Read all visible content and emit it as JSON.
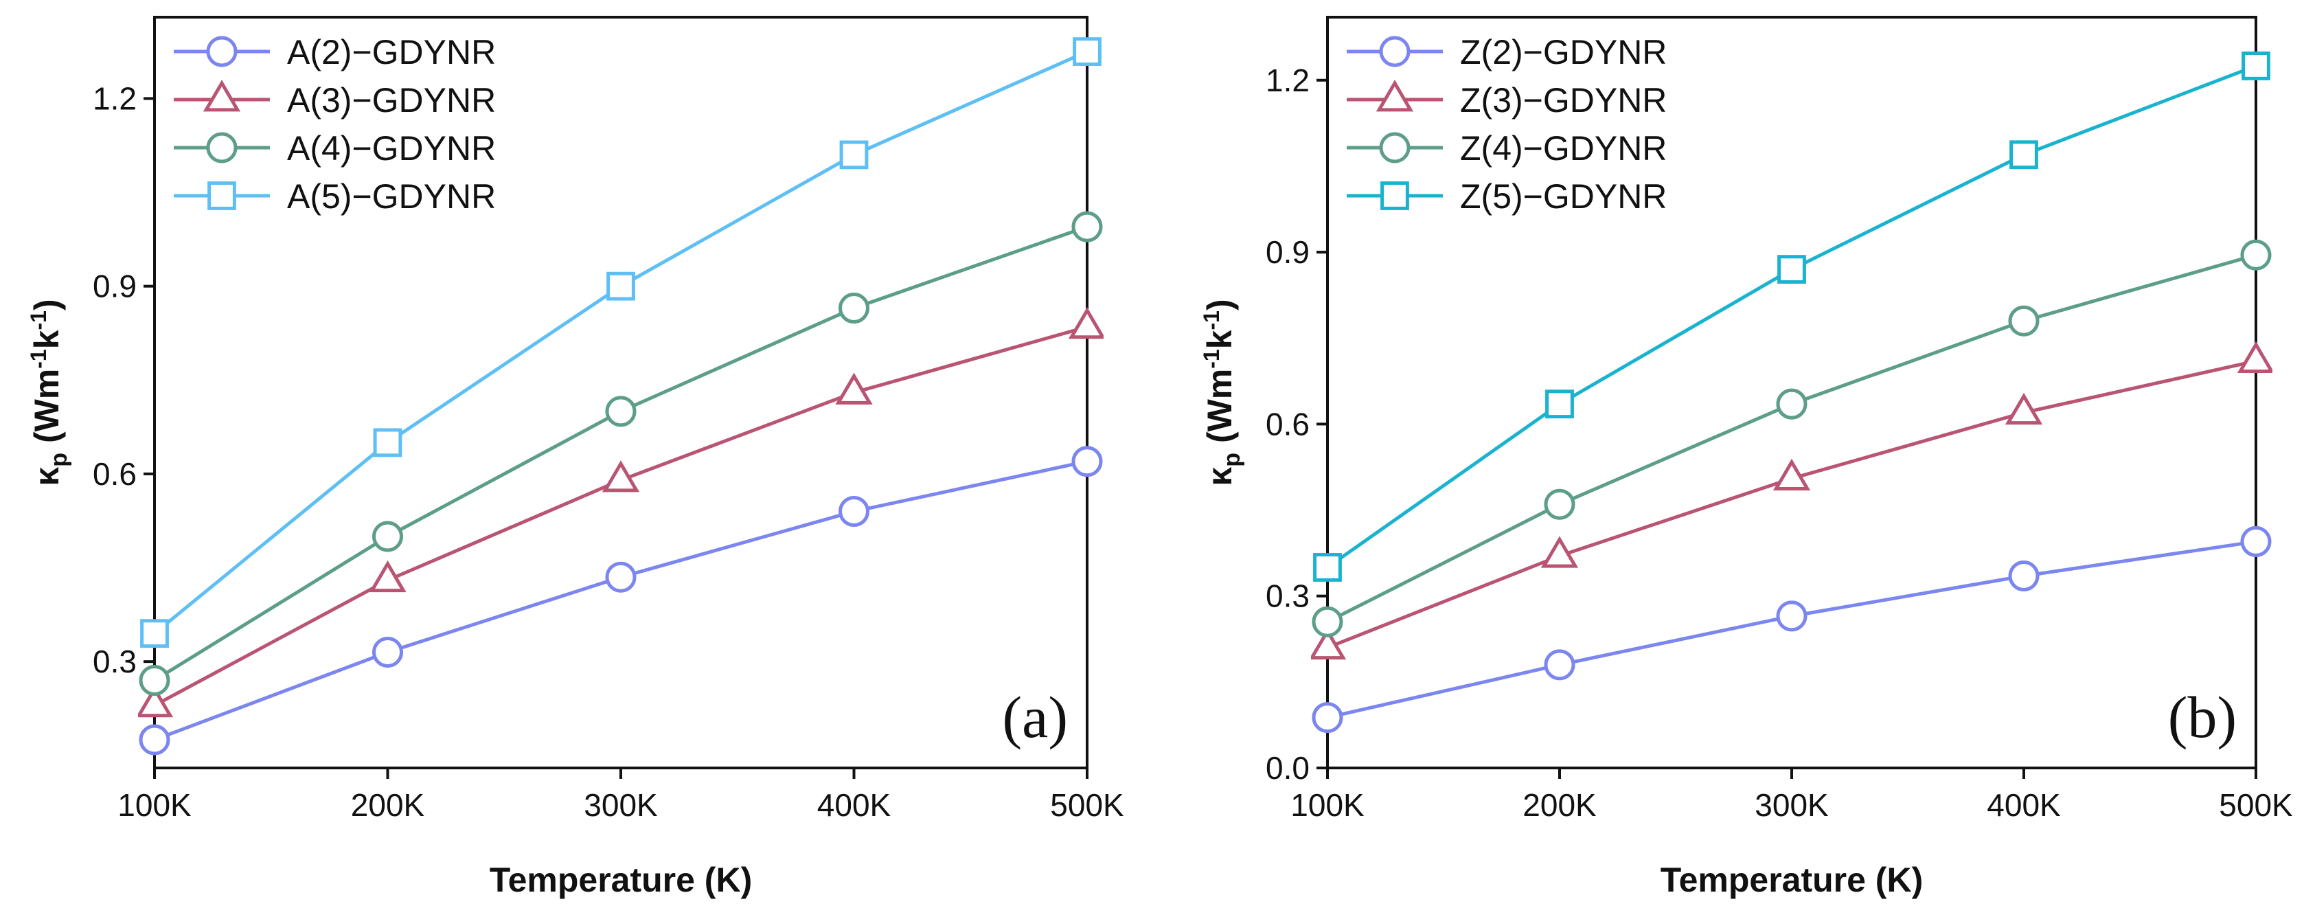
{
  "chart_data": [
    {
      "type": "line",
      "panel_label": "(a)",
      "x": [
        100,
        200,
        300,
        400,
        500
      ],
      "x_tick_labels": [
        "100K",
        "200K",
        "300K",
        "400K",
        "500K"
      ],
      "xlim": [
        100,
        500
      ],
      "xlabel": "Temperature (K)",
      "ylabel_main": "κ",
      "ylabel_sub": "p",
      "ylabel_unit": " (Wm",
      "ylabel_exp1": "-1",
      "ylabel_mid": "k",
      "ylabel_exp2": "-1",
      "ylabel_close": ")",
      "ylim": [
        0.13,
        1.33
      ],
      "y_ticks": [
        0.3,
        0.6,
        0.9,
        1.2
      ],
      "y_tick_labels": [
        "0.3",
        "0.6",
        "0.9",
        "1.2"
      ],
      "legend_position": "top-left",
      "series": [
        {
          "name": "A(2)−GDYNR",
          "marker": "circle",
          "color": "#7b86f0",
          "values": [
            0.175,
            0.315,
            0.435,
            0.54,
            0.62
          ]
        },
        {
          "name": "A(3)−GDYNR",
          "marker": "triangle",
          "color": "#b95573",
          "values": [
            0.23,
            0.43,
            0.59,
            0.73,
            0.835
          ]
        },
        {
          "name": "A(4)−GDYNR",
          "marker": "circle",
          "color": "#5c9e86",
          "values": [
            0.27,
            0.5,
            0.7,
            0.865,
            0.995
          ]
        },
        {
          "name": "A(5)−GDYNR",
          "marker": "square",
          "color": "#5ebff5",
          "values": [
            0.345,
            0.65,
            0.9,
            1.11,
            1.275
          ]
        }
      ]
    },
    {
      "type": "line",
      "panel_label": "(b)",
      "x": [
        100,
        200,
        300,
        400,
        500
      ],
      "x_tick_labels": [
        "100K",
        "200K",
        "300K",
        "400K",
        "500K"
      ],
      "xlim": [
        100,
        500
      ],
      "xlabel": "Temperature (K)",
      "ylabel_main": "κ",
      "ylabel_sub": "p",
      "ylabel_unit": " (Wm",
      "ylabel_exp1": "-1",
      "ylabel_mid": "k",
      "ylabel_exp2": "-1",
      "ylabel_close": ")",
      "ylim": [
        0.0,
        1.31
      ],
      "y_ticks": [
        0.0,
        0.3,
        0.6,
        0.9,
        1.2
      ],
      "y_tick_labels": [
        "0.0",
        "0.3",
        "0.6",
        "0.9",
        "1.2"
      ],
      "legend_position": "top-left",
      "series": [
        {
          "name": "Z(2)−GDYNR",
          "marker": "circle",
          "color": "#7b86f0",
          "values": [
            0.088,
            0.18,
            0.265,
            0.335,
            0.395
          ]
        },
        {
          "name": "Z(3)−GDYNR",
          "marker": "triangle",
          "color": "#b95573",
          "values": [
            0.21,
            0.37,
            0.505,
            0.62,
            0.71
          ]
        },
        {
          "name": "Z(4)−GDYNR",
          "marker": "circle",
          "color": "#5c9e86",
          "values": [
            0.255,
            0.46,
            0.635,
            0.78,
            0.895
          ]
        },
        {
          "name": "Z(5)−GDYNR",
          "marker": "square",
          "color": "#1ab3cf",
          "values": [
            0.35,
            0.635,
            0.87,
            1.07,
            1.225
          ]
        }
      ]
    }
  ]
}
